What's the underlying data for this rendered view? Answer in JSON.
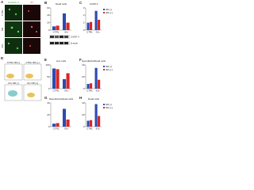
{
  "panel_labels": [
    "A",
    "B",
    "C",
    "D",
    "E",
    "F",
    "G",
    "H"
  ],
  "image_panel": {
    "column_headers": [
      "Annexin V",
      "PI"
    ],
    "row_labels": [
      "CTRL",
      "NR",
      "IOx"
    ]
  },
  "blot": {
    "labels": [
      "CASP 3",
      "β-actin"
    ]
  },
  "flow": {
    "plot_titles": [
      "CTRL NR [-]",
      "CTRL NR [+]",
      "IOx NR [-]",
      "IOx NR [+]"
    ]
  },
  "chart_data": [
    {
      "type": "bar",
      "title": "Dead cells",
      "categories": [
        "CTRL",
        "IOx"
      ],
      "series": [
        {
          "name": "NR [-]",
          "color": "#2b4bb0",
          "values": [
            10,
            45
          ]
        },
        {
          "name": "NR [+]",
          "color": "#d62728",
          "values": [
            12,
            20
          ]
        }
      ],
      "ylim": [
        0,
        60
      ],
      "yticks": [
        0,
        20,
        40,
        60
      ],
      "legend": false
    },
    {
      "type": "bar",
      "title": "CASP 3",
      "categories": [
        "CTRL",
        "IOx"
      ],
      "series": [
        {
          "name": "NR [-]",
          "color": "#2b4bb0",
          "values": [
            1,
            2.6
          ]
        },
        {
          "name": "NR [+]",
          "color": "#d62728",
          "values": [
            1.1,
            1.4
          ]
        }
      ],
      "ylim": [
        0,
        3
      ],
      "yticks": [
        0,
        1,
        2,
        3
      ],
      "legend": true
    },
    {
      "type": "bar",
      "title": "Live cells",
      "categories": [
        "CTRL",
        "IOx"
      ],
      "series": [
        {
          "name": "NR [-]",
          "color": "#2b4bb0",
          "values": [
            85,
            40
          ]
        },
        {
          "name": "NR [+]",
          "color": "#d62728",
          "values": [
            82,
            65
          ]
        }
      ],
      "ylim": [
        0,
        100
      ],
      "yticks": [
        0,
        50,
        100
      ],
      "legend": false
    },
    {
      "type": "bar",
      "title": "Hypodiploid/dead cells",
      "categories": [
        "CTRL",
        "IOx"
      ],
      "series": [
        {
          "name": "NR [-]",
          "color": "#2b4bb0",
          "values": [
            8,
            35
          ]
        },
        {
          "name": "NR [+]",
          "color": "#d62728",
          "values": [
            9,
            15
          ]
        }
      ],
      "ylim": [
        0,
        40
      ],
      "yticks": [
        0,
        20,
        40
      ],
      "legend": true
    },
    {
      "type": "bar",
      "title": "Depolarized/dead cells",
      "categories": [
        "CTRL",
        "IOx"
      ],
      "series": [
        {
          "name": "NR [-]",
          "color": "#2b4bb0",
          "values": [
            5,
            30
          ]
        },
        {
          "name": "NR [+]",
          "color": "#d62728",
          "values": [
            6,
            12
          ]
        }
      ],
      "ylim": [
        0,
        40
      ],
      "yticks": [
        0,
        20,
        40
      ],
      "legend": false
    },
    {
      "type": "bar",
      "title": "Dead cells",
      "categories": [
        "CTRL",
        "IOx"
      ],
      "series": [
        {
          "name": "NR [-]",
          "color": "#2b4bb0",
          "values": [
            10,
            38
          ]
        },
        {
          "name": "NR [+]",
          "color": "#d62728",
          "values": [
            11,
            18
          ]
        }
      ],
      "ylim": [
        0,
        40
      ],
      "yticks": [
        0,
        20,
        40
      ],
      "legend": true
    }
  ]
}
